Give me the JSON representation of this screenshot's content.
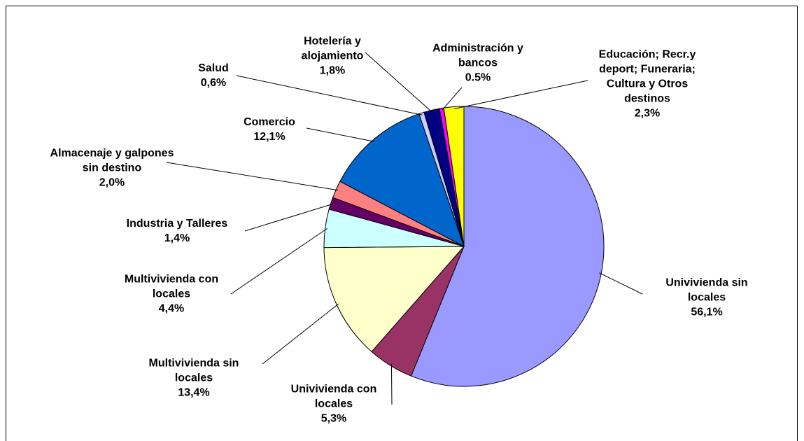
{
  "chart_data": {
    "type": "pie",
    "categories": [
      "Univivienda sin locales",
      "Univivienda con locales",
      "Multivivienda sin locales",
      "Multivivienda con locales",
      "Industria y Talleres",
      "Almacenaje y galpones sin destino",
      "Comercio",
      "Salud",
      "Hotelería y alojamiento",
      "Administración y bancos",
      "Educación; Recr.y deport; Funeraria; Cultura y Otros destinos"
    ],
    "values": [
      56.1,
      5.3,
      13.4,
      4.4,
      1.4,
      2.0,
      12.1,
      0.6,
      1.8,
      0.5,
      2.3
    ],
    "value_labels": [
      "56,1%",
      "5,3%",
      "13,4%",
      "4,4%",
      "1,4%",
      "2,0%",
      "12,1%",
      "0,6%",
      "1,8%",
      "0.5%",
      "2,3%"
    ],
    "colors": [
      "#9999ff",
      "#993366",
      "#ffffcc",
      "#ccffff",
      "#660066",
      "#ff8080",
      "#0066cc",
      "#ccccff",
      "#000080",
      "#ff00ff",
      "#ffff00"
    ]
  }
}
